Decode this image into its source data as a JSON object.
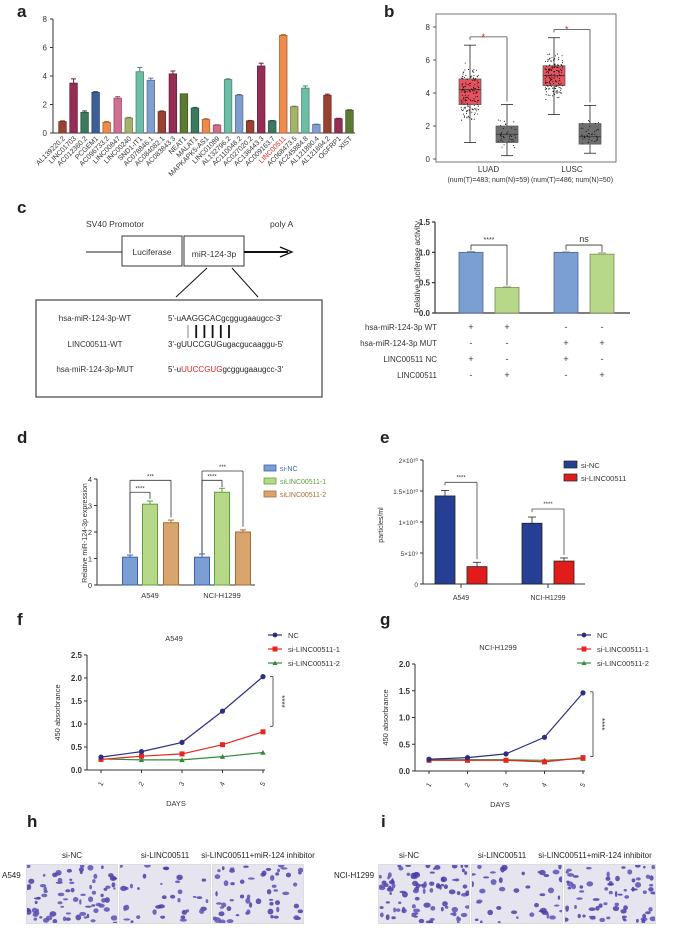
{
  "panel_letters": {
    "a": "a",
    "b": "b",
    "c": "c",
    "d": "d",
    "e": "e",
    "f": "f",
    "g": "g",
    "h": "h",
    "i": "i"
  },
  "chart_data": [
    {
      "id": "a",
      "type": "bar",
      "title": "",
      "xlabel": "",
      "ylabel": "",
      "ylim": [
        0,
        8
      ],
      "yticks": [
        0,
        2,
        4,
        6,
        8
      ],
      "highlight": "LINC00511",
      "highlight_color": "#e8251f",
      "categories": [
        "AL139220.2",
        "LINC01703",
        "AC012360.2",
        "PCGEM1",
        "AC096733.2",
        "LINC00847",
        "LINC00240",
        "SND1-IT1",
        "AC078846.1",
        "AC084082.1",
        "AC083843.3",
        "NEAT1",
        "MALAT1",
        "MAPKAPK5-AS1",
        "LINC01089",
        "AL132796.2",
        "AC110048.2",
        "AC027020.2",
        "AC136443.3",
        "AC009163.7",
        "LINC00511",
        "AC068473.5",
        "AC245884.8",
        "AL121890.4",
        "AL121694.2",
        "OGFRP1",
        "XIST"
      ],
      "values": [
        0.8,
        3.5,
        1.45,
        2.85,
        0.75,
        2.45,
        1.05,
        4.3,
        3.7,
        1.5,
        4.15,
        2.75,
        1.75,
        0.95,
        0.55,
        3.75,
        2.65,
        0.85,
        4.7,
        0.85,
        6.85,
        1.85,
        3.15,
        0.6,
        2.65,
        1.0,
        1.6
      ],
      "errors": [
        0.05,
        0.3,
        0.1,
        0.05,
        0.05,
        0.1,
        0.05,
        0.3,
        0.15,
        0.05,
        0.2,
        0.0,
        0.05,
        0.05,
        0.03,
        0.05,
        0.05,
        0.03,
        0.2,
        0.03,
        0.05,
        0.03,
        0.15,
        0.02,
        0.08,
        0.03,
        0.03
      ],
      "colors": [
        "#9a4232",
        "#952d55",
        "#3b7a5f",
        "#3c5f9a",
        "#ee8a4a",
        "#d06e94",
        "#a5b26b",
        "#6cbea6",
        "#7f9fd0",
        "#9a4232",
        "#952d55",
        "#5d7a31",
        "#3b7a5f",
        "#ee8a4a",
        "#d06e94",
        "#6cbea6",
        "#7f9fd0",
        "#9a4232",
        "#952d55",
        "#3b7a5f",
        "#ee8a4a",
        "#a5b26b",
        "#6cbea6",
        "#7f9fd0",
        "#9a4232",
        "#952d55",
        "#5d7a31"
      ]
    },
    {
      "id": "b",
      "type": "boxplot",
      "ylim": [
        0,
        8
      ],
      "yticks": [
        0,
        2,
        4,
        6,
        8
      ],
      "groups": [
        {
          "name": "LUAD",
          "sub": "(num(T)=483; num(N)=59)",
          "tumor": {
            "min": 1.0,
            "q1": 3.3,
            "median": 4.2,
            "q3": 4.85,
            "max": 6.9
          },
          "normal": {
            "min": 0.2,
            "q1": 1.0,
            "median": 1.5,
            "q3": 2.0,
            "max": 3.3
          },
          "significance": "*"
        },
        {
          "name": "LUSC",
          "sub": "(num(T)=486; num(N)=50)",
          "tumor": {
            "min": 2.7,
            "q1": 4.45,
            "median": 5.05,
            "q3": 5.65,
            "max": 7.35
          },
          "normal": {
            "min": 0.35,
            "q1": 0.9,
            "median": 1.35,
            "q3": 2.15,
            "max": 3.25
          },
          "significance": "*"
        }
      ],
      "tumor_color": "#e8525e",
      "normal_color": "#6f6f6f",
      "sig_color": "#e8251f"
    },
    {
      "id": "c_bar",
      "type": "bar",
      "ylabel": "Relative luciferase activity",
      "ylim": [
        0,
        1.5
      ],
      "yticks": [
        "0.0",
        "0.5",
        "1.0",
        "1.5"
      ],
      "values": [
        1.0,
        0.42,
        1.0,
        0.97
      ],
      "errors": [
        0.01,
        0.01,
        0.005,
        0.02
      ],
      "colors": [
        "#7b9fd3",
        "#b7d789",
        "#7b9fd3",
        "#b7d789"
      ],
      "brackets": [
        {
          "from": 0,
          "to": 1,
          "label": "****"
        },
        {
          "from": 2,
          "to": 3,
          "label": "ns"
        }
      ],
      "condition_rows": [
        {
          "label": "hsa-miR-124-3p WT",
          "signs": [
            "+",
            "+",
            "-",
            "-"
          ]
        },
        {
          "label": "hsa-miR-124-3p MUT",
          "signs": [
            "-",
            "-",
            "+",
            "+"
          ]
        },
        {
          "label": "LINC00511 NC",
          "signs": [
            "+",
            "-",
            "+",
            "-"
          ]
        },
        {
          "label": "LINC00511",
          "signs": [
            "-",
            "+",
            "-",
            "+"
          ]
        }
      ]
    },
    {
      "id": "d",
      "type": "bar",
      "ylabel": "Relative miR-124-3p  expression",
      "ylim": [
        0,
        4
      ],
      "yticks": [
        "0",
        "1",
        "2",
        "3",
        "4"
      ],
      "categories": [
        "A549",
        "NCI-H1299"
      ],
      "series": [
        {
          "name": "si-NC",
          "values": [
            1.05,
            1.05
          ],
          "errors": [
            0.08,
            0.12
          ],
          "color": "#7b9fd3",
          "edge": "#3a62ae"
        },
        {
          "name": "siLINC00511-1",
          "values": [
            3.05,
            3.5
          ],
          "errors": [
            0.12,
            0.15
          ],
          "color": "#b7d789",
          "edge": "#5ea13a"
        },
        {
          "name": "siLINC00511-2",
          "values": [
            2.35,
            2.0
          ],
          "errors": [
            0.1,
            0.08
          ],
          "color": "#d9a56e",
          "edge": "#a96a32"
        }
      ],
      "brackets": [
        {
          "cat": 0,
          "from": 0,
          "to": 1,
          "label": "****",
          "level": 1
        },
        {
          "cat": 0,
          "from": 0,
          "to": 2,
          "label": "***",
          "level": 2
        },
        {
          "cat": 1,
          "from": 0,
          "to": 1,
          "label": "****",
          "level": 1
        },
        {
          "cat": 1,
          "from": 0,
          "to": 2,
          "label": "***",
          "level": 2
        }
      ],
      "legend": "top-right"
    },
    {
      "id": "e",
      "type": "bar",
      "ylabel": "particles/ml",
      "ylim": [
        0,
        20000000000.0
      ],
      "yticks": [
        "0",
        "5×10⁹",
        "1×10¹⁰",
        "1.5×10¹⁰",
        "2×10¹⁰"
      ],
      "categories": [
        "A549",
        "NCI-H1299"
      ],
      "series": [
        {
          "name": "si-NC",
          "values": [
            14200000000.0,
            9800000000.0
          ],
          "errors": [
            900000000.0,
            1000000000.0
          ],
          "color": "#243f93"
        },
        {
          "name": "si-LINC00511",
          "values": [
            2800000000.0,
            3700000000.0
          ],
          "errors": [
            700000000.0,
            500000000.0
          ],
          "color": "#e21b1b"
        }
      ],
      "brackets": [
        {
          "cat": 0,
          "label": "****"
        },
        {
          "cat": 1,
          "label": "****"
        }
      ],
      "legend": "top-right"
    },
    {
      "id": "f",
      "type": "line",
      "title": "A549",
      "xlabel": "DAYS",
      "ylabel": "450 absorbrance",
      "ylim": [
        0,
        2.5
      ],
      "yticks": [
        "0.0",
        "0.5",
        "1.0",
        "1.5",
        "2.0",
        "2.5"
      ],
      "x": [
        "1",
        "2",
        "3",
        "4",
        "5"
      ],
      "series": [
        {
          "name": "NC",
          "values": [
            0.28,
            0.4,
            0.6,
            1.28,
            2.03
          ],
          "color": "#2b2f83",
          "marker": "circle"
        },
        {
          "name": "si-LINC00511-1",
          "values": [
            0.23,
            0.3,
            0.35,
            0.55,
            0.83
          ],
          "color": "#e8251f",
          "marker": "square"
        },
        {
          "name": "si-LINC00511-2",
          "values": [
            0.24,
            0.22,
            0.22,
            0.29,
            0.38
          ],
          "color": "#2e8b3a",
          "marker": "triangle"
        }
      ],
      "significance": {
        "label": "****",
        "from": 2.03,
        "to": 0.95
      },
      "legend": "top-right"
    },
    {
      "id": "g",
      "type": "line",
      "title": "NCI-H1299",
      "xlabel": "DAYS",
      "ylabel": "450 absorbrance",
      "ylim": [
        0,
        2.0
      ],
      "yticks": [
        "0.0",
        "0.5",
        "1.0",
        "1.5",
        "2.0"
      ],
      "x": [
        "1",
        "2",
        "3",
        "4",
        "5"
      ],
      "series": [
        {
          "name": "NC",
          "values": [
            0.22,
            0.25,
            0.32,
            0.63,
            1.46
          ],
          "color": "#2b2f83",
          "marker": "circle"
        },
        {
          "name": "si-LINC00511-1",
          "values": [
            0.2,
            0.2,
            0.2,
            0.17,
            0.25
          ],
          "color": "#e8251f",
          "marker": "square"
        },
        {
          "name": "si-LINC00511-2",
          "values": [
            0.21,
            0.21,
            0.21,
            0.2,
            0.23
          ],
          "color": "#2e8b3a",
          "marker": "triangle"
        }
      ],
      "significance": {
        "label": "****",
        "from": 1.48,
        "to": 0.27
      },
      "legend": "top-right"
    }
  ],
  "construct": {
    "promoter": "SV40 Promotor",
    "polyA": "poly A",
    "box1": "Luciferase",
    "box2": "miR-124-3p",
    "rows": [
      {
        "name": "hsa-miR-124-3p-WT",
        "prefix": "5'-u",
        "core": "AAGGCAC",
        "suffix": "gcggugaaugcc-3'",
        "core_red": false
      },
      {
        "name": "LINC00511-WT",
        "prefix": "3'-g",
        "core": "UUCCGUG",
        "suffix": "ugacgucaaggu-5'",
        "core_red": false
      },
      {
        "name": "hsa-miR-124-3p-MUT",
        "prefix": "5'-u",
        "core": "UUCCGUG",
        "suffix": "gcggugaaugcc-3'",
        "core_red": true
      }
    ]
  },
  "transwell": {
    "h": {
      "row_label": "A549",
      "conditions": [
        "si-NC",
        "si-LINC00511",
        "si-LINC00511+miR-124 inhibitor"
      ],
      "density": [
        0.55,
        0.25,
        0.4
      ]
    },
    "i": {
      "row_label": "NCI-H1299",
      "conditions": [
        "si-NC",
        "si-LINC00511",
        "si-LINC00511+miR-124 inhibitor"
      ],
      "density": [
        0.65,
        0.3,
        0.5
      ]
    }
  }
}
